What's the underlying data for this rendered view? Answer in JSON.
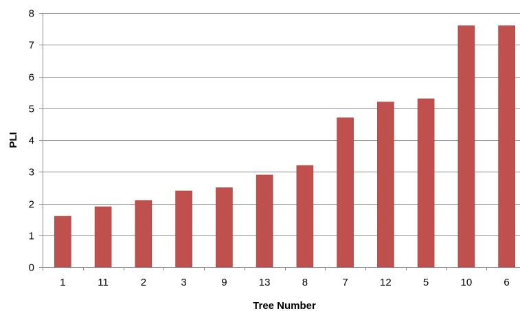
{
  "colors": {
    "bar": "#C0504D",
    "bar_edge": "#9E3B39",
    "gridline": "#8C8C8C",
    "axis": "#8C8C8C",
    "background": "#FFFFFF"
  },
  "chart_data": {
    "type": "bar",
    "title": "",
    "xlabel": "Tree Number",
    "ylabel": "PLI",
    "categories": [
      "1",
      "11",
      "2",
      "3",
      "9",
      "13",
      "8",
      "7",
      "12",
      "5",
      "10",
      "6"
    ],
    "values": [
      1.6,
      1.9,
      2.1,
      2.4,
      2.5,
      2.9,
      3.2,
      4.7,
      5.2,
      5.3,
      7.6,
      7.6
    ],
    "ylim": [
      0,
      8
    ],
    "yticks": [
      "0",
      "1",
      "2",
      "3",
      "4",
      "5",
      "6",
      "7",
      "8"
    ],
    "grid": true,
    "legend": "none"
  }
}
